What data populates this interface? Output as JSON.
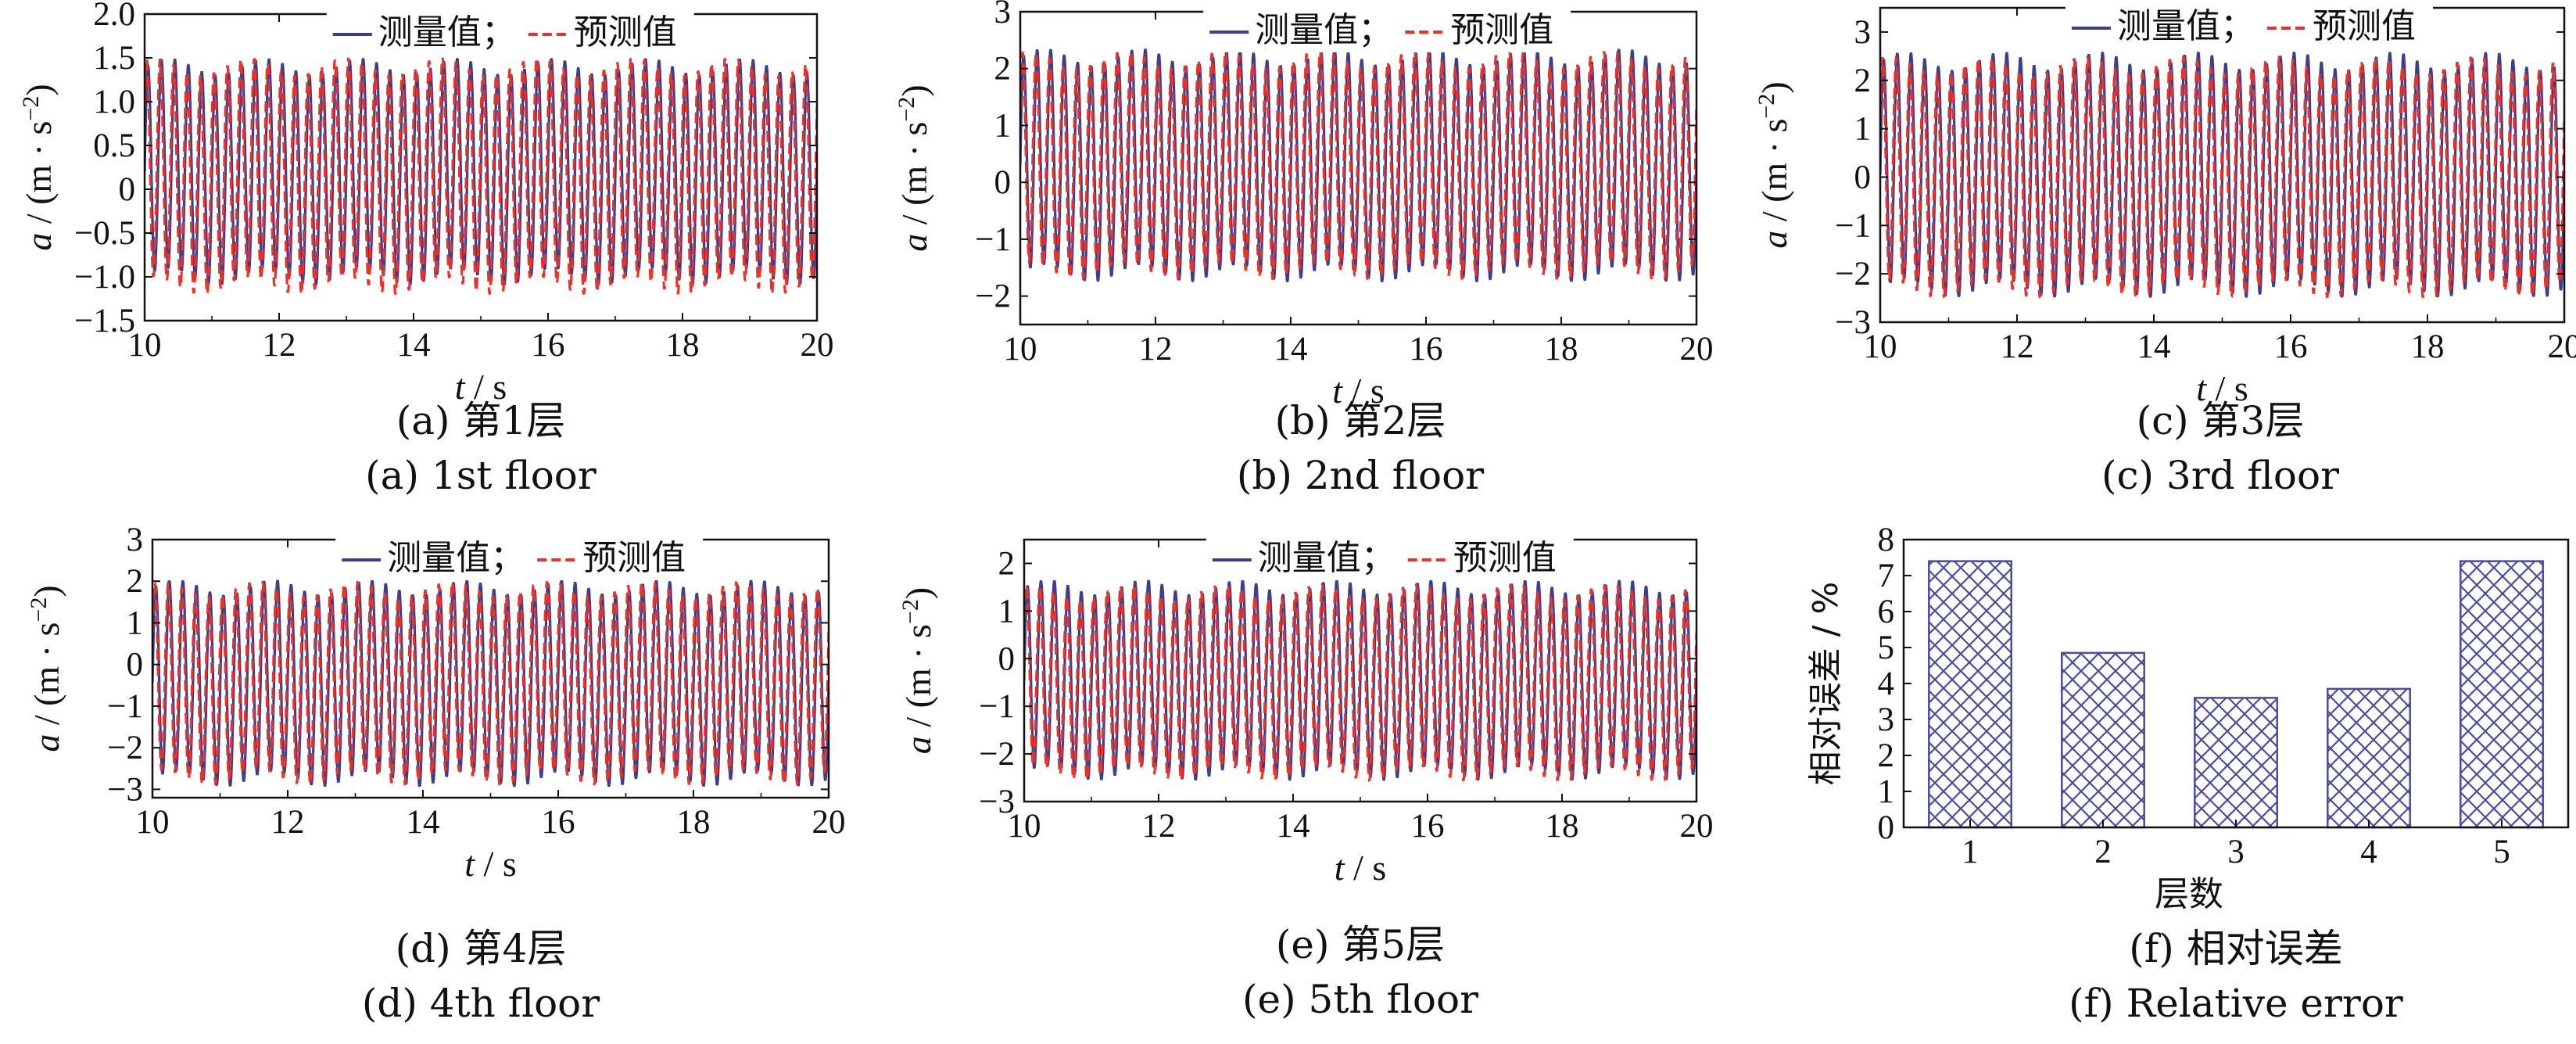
{
  "colors": {
    "measured": "#3b3f8f",
    "predicted": "#e8332a",
    "axis": "#111111",
    "bar_hatch": "#4a4c9c"
  },
  "chart_data": [
    {
      "type": "line",
      "panel": "a",
      "caption_cn": "(a)  第1层",
      "caption_en": "(a)  1st floor",
      "xlabel_var": "t",
      "xlabel_unit": " / s",
      "ylabel_var": "a",
      "ylabel_unit": " / (m · s",
      "ylabel_exp": "−2",
      "ylabel_close": ")",
      "legend": {
        "measured": "测量值；",
        "predicted": "预测值",
        "position": "top"
      },
      "xlim": [
        10,
        20
      ],
      "ylim": [
        -1.5,
        2.0
      ],
      "xticks": [
        10,
        12,
        14,
        16,
        18,
        20
      ],
      "yticks": [
        -1.5,
        -1.0,
        -0.5,
        0,
        0.5,
        1.0,
        1.5,
        2.0
      ],
      "ytick_labels": [
        "−1.5",
        "−1.0",
        "−0.5",
        "0",
        "0.5",
        "1.0",
        "1.5",
        "2.0"
      ],
      "series": [
        {
          "name": "测量值",
          "role": "measured",
          "center": 0.2,
          "amplitude": 1.2,
          "frequency": 5.0,
          "phase": 0.0
        },
        {
          "name": "预测值",
          "role": "predicted",
          "center": 0.15,
          "amplitude": 1.25,
          "frequency": 5.0,
          "phase": 0.6
        }
      ]
    },
    {
      "type": "line",
      "panel": "b",
      "caption_cn": "(b)  第2层",
      "caption_en": "(b) 2nd floor",
      "xlabel_var": "t",
      "xlabel_unit": " / s",
      "ylabel_var": "a",
      "ylabel_unit": " / (m · s",
      "ylabel_exp": "−2",
      "ylabel_close": ")",
      "legend": {
        "measured": "测量值；",
        "predicted": "预测值",
        "position": "top"
      },
      "xlim": [
        10,
        20
      ],
      "ylim": [
        -2.5,
        3.0
      ],
      "xticks": [
        10,
        12,
        14,
        16,
        18,
        20
      ],
      "yticks": [
        -2,
        -1,
        0,
        1,
        2,
        3
      ],
      "ytick_labels": [
        "−2",
        "−1",
        "0",
        "1",
        "2",
        "3"
      ],
      "series": [
        {
          "name": "测量值",
          "role": "measured",
          "center": 0.3,
          "amplitude": 1.9,
          "frequency": 5.0,
          "phase": 0.0
        },
        {
          "name": "预测值",
          "role": "predicted",
          "center": 0.3,
          "amplitude": 1.85,
          "frequency": 5.0,
          "phase": 0.5
        }
      ]
    },
    {
      "type": "line",
      "panel": "c",
      "caption_cn": "(c)  第3层",
      "caption_en": "(c) 3rd floor",
      "xlabel_var": "t",
      "xlabel_unit": " / s",
      "ylabel_var": "a",
      "ylabel_unit": " / (m · s",
      "ylabel_exp": "−2",
      "ylabel_close": ")",
      "legend": {
        "measured": "测量值；",
        "predicted": "预测值",
        "position": "top"
      },
      "xlim": [
        10,
        20
      ],
      "ylim": [
        -3,
        3.5
      ],
      "xticks": [
        10,
        12,
        14,
        16,
        18,
        20
      ],
      "yticks": [
        -3,
        -2,
        -1,
        0,
        1,
        2,
        3
      ],
      "ytick_labels": [
        "−3",
        "−2",
        "−1",
        "0",
        "1",
        "2",
        "3"
      ],
      "series": [
        {
          "name": "测量值",
          "role": "measured",
          "center": 0.05,
          "amplitude": 2.35,
          "frequency": 5.0,
          "phase": 0.0
        },
        {
          "name": "预测值",
          "role": "predicted",
          "center": 0.0,
          "amplitude": 2.3,
          "frequency": 5.0,
          "phase": 0.5
        }
      ]
    },
    {
      "type": "line",
      "panel": "d",
      "caption_cn": "(d)  第4层",
      "caption_en": "(d) 4th floor",
      "xlabel_var": "t",
      "xlabel_unit": " / s",
      "ylabel_var": "a",
      "ylabel_unit": " / (m · s",
      "ylabel_exp": "−2",
      "ylabel_close": ")",
      "legend": {
        "measured": "测量值；",
        "predicted": "预测值",
        "position": "top"
      },
      "xlim": [
        10,
        20
      ],
      "ylim": [
        -3.2,
        3.0
      ],
      "xticks": [
        10,
        12,
        14,
        16,
        18,
        20
      ],
      "yticks": [
        -3,
        -2,
        -1,
        0,
        1,
        2,
        3
      ],
      "ytick_labels": [
        "−3",
        "−2",
        "−1",
        "0",
        "1",
        "2",
        "3"
      ],
      "series": [
        {
          "name": "测量值",
          "role": "measured",
          "center": -0.45,
          "amplitude": 2.3,
          "frequency": 5.0,
          "phase": 0.0
        },
        {
          "name": "预测值",
          "role": "predicted",
          "center": -0.45,
          "amplitude": 2.25,
          "frequency": 5.0,
          "phase": 0.5
        }
      ]
    },
    {
      "type": "line",
      "panel": "e",
      "caption_cn": "(e)  第5层",
      "caption_en": "(e)  5th floor",
      "xlabel_var": "t",
      "xlabel_unit": " / s",
      "ylabel_var": "a",
      "ylabel_unit": " / (m · s",
      "ylabel_exp": "−2",
      "ylabel_close": ")",
      "legend": {
        "measured": "测量值；",
        "predicted": "预测值",
        "position": "top"
      },
      "xlim": [
        10,
        20
      ],
      "ylim": [
        -3.0,
        2.5
      ],
      "xticks": [
        10,
        12,
        14,
        16,
        18,
        20
      ],
      "yticks": [
        -3,
        -2,
        -1,
        0,
        1,
        2
      ],
      "ytick_labels": [
        "−3",
        "−2",
        "−1",
        "0",
        "1",
        "2"
      ],
      "series": [
        {
          "name": "测量值",
          "role": "measured",
          "center": -0.45,
          "amplitude": 1.95,
          "frequency": 5.0,
          "phase": 0.0
        },
        {
          "name": "预测值",
          "role": "predicted",
          "center": -0.5,
          "amplitude": 1.9,
          "frequency": 5.0,
          "phase": 0.5
        }
      ]
    },
    {
      "type": "bar",
      "panel": "f",
      "caption_cn": "(f)  相对误差",
      "caption_en": "(f)  Relative error",
      "xlabel": "层数",
      "ylabel": "相对误差 / %",
      "categories": [
        "1",
        "2",
        "3",
        "4",
        "5"
      ],
      "values": [
        7.4,
        4.85,
        3.6,
        3.85,
        7.4
      ],
      "ylim": [
        0,
        8
      ],
      "yticks": [
        0,
        1,
        2,
        3,
        4,
        5,
        6,
        7,
        8
      ],
      "ytick_labels": [
        "0",
        "1",
        "2",
        "3",
        "4",
        "5",
        "6",
        "7",
        "8"
      ],
      "fill": "crosshatch"
    }
  ]
}
